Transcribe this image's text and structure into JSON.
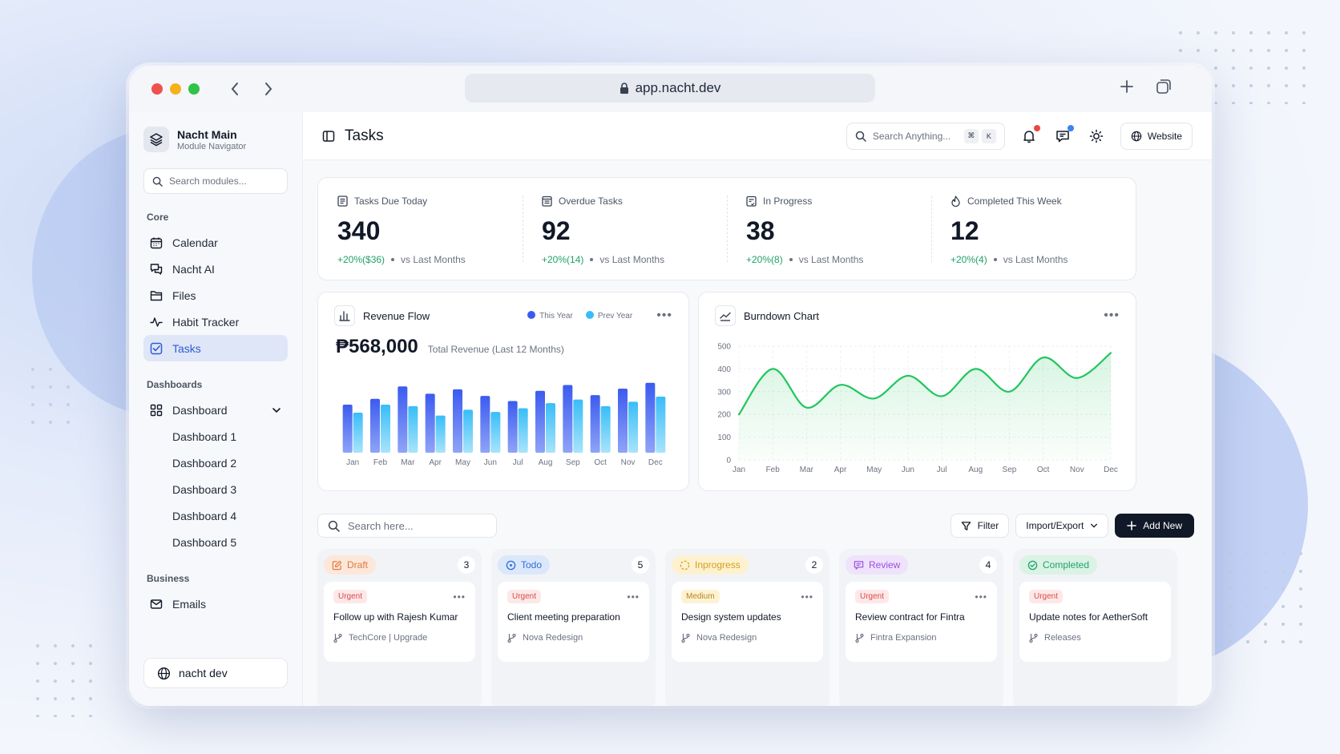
{
  "browser": {
    "url": "app.nacht.dev"
  },
  "sidebar": {
    "brand_title": "Nacht Main",
    "brand_subtitle": "Module Navigator",
    "search_placeholder": "Search modules...",
    "sections": {
      "core": "Core",
      "dashboards": "Dashboards",
      "business": "Business"
    },
    "core_items": [
      {
        "label": "Calendar",
        "icon": "calendar-icon"
      },
      {
        "label": "Nacht AI",
        "icon": "chat-icon"
      },
      {
        "label": "Files",
        "icon": "folder-icon"
      },
      {
        "label": "Habit Tracker",
        "icon": "activity-icon"
      },
      {
        "label": "Tasks",
        "icon": "checkbox-icon",
        "active": true
      }
    ],
    "dashboard_label": "Dashboard",
    "dashboard_items": [
      "Dashboard 1",
      "Dashboard 2",
      "Dashboard 3",
      "Dashboard 4",
      "Dashboard 5"
    ],
    "business_items": [
      {
        "label": "Emails",
        "icon": "mail-icon"
      }
    ],
    "profile_name": "nacht dev"
  },
  "header": {
    "title": "Tasks",
    "search_placeholder": "Search Anything...",
    "shortcut": [
      "⌘",
      "K"
    ],
    "website_label": "Website",
    "colors": {
      "notif_dot": "#ef4444",
      "message_dot": "#3b82f6"
    }
  },
  "stats": [
    {
      "label": "Tasks Due Today",
      "value": "340",
      "delta": "+20%($36)",
      "compare": "vs Last Months"
    },
    {
      "label": "Overdue Tasks",
      "value": "92",
      "delta": "+20%(14)",
      "compare": "vs Last Months"
    },
    {
      "label": "In Progress",
      "value": "38",
      "delta": "+20%(8)",
      "compare": "vs Last Months"
    },
    {
      "label": "Completed This Week",
      "value": "12",
      "delta": "+20%(4)",
      "compare": "vs Last Months"
    }
  ],
  "revenue": {
    "title": "Revenue Flow",
    "amount": "₱568,000",
    "caption": "Total Revenue (Last 12 Months)",
    "legend_this": "This Year",
    "legend_prev": "Prev Year",
    "colors": {
      "this_year": "#3b5bf0",
      "prev_year": "#38bdf8"
    }
  },
  "burndown": {
    "title": "Burndown Chart",
    "color": "#22c55e"
  },
  "chart_data": [
    {
      "type": "bar",
      "categories": [
        "Jan",
        "Feb",
        "Mar",
        "Apr",
        "May",
        "Jun",
        "Jul",
        "Aug",
        "Sep",
        "Oct",
        "Nov",
        "Dec"
      ],
      "series": [
        {
          "name": "This Year",
          "values": [
            66,
            74,
            91,
            81,
            87,
            78,
            71,
            85,
            93,
            79,
            88,
            96
          ]
        },
        {
          "name": "Prev Year",
          "values": [
            55,
            66,
            64,
            51,
            59,
            56,
            61,
            68,
            73,
            64,
            70,
            77
          ]
        }
      ],
      "ylim": [
        0,
        110
      ],
      "grid": false
    },
    {
      "type": "line",
      "x": [
        "Jan",
        "Feb",
        "Mar",
        "Apr",
        "May",
        "Jun",
        "Jul",
        "Aug",
        "Sep",
        "Oct",
        "Nov",
        "Dec"
      ],
      "y": [
        200,
        400,
        230,
        330,
        270,
        370,
        280,
        400,
        300,
        450,
        360,
        470
      ],
      "ylim": [
        0,
        500
      ],
      "yticks": [
        0,
        100,
        200,
        300,
        400,
        500
      ],
      "grid": true
    }
  ],
  "toolbar": {
    "search_placeholder": "Search here...",
    "filter_label": "Filter",
    "import_label": "Import/Export",
    "add_label": "Add New"
  },
  "kanban": [
    {
      "name": "Draft",
      "count": "3",
      "icon": "edit-icon",
      "bg": "#fde7da",
      "fg": "#e07a3f",
      "task": {
        "priority": "Urgent",
        "prio_class": "urgent",
        "title": "Follow up with Rajesh Kumar",
        "project": "TechCore | Upgrade"
      }
    },
    {
      "name": "Todo",
      "count": "5",
      "icon": "target-icon",
      "bg": "#dbe7fb",
      "fg": "#2f6fd8",
      "task": {
        "priority": "Urgent",
        "prio_class": "urgent",
        "title": "Client meeting preparation",
        "project": "Nova Redesign"
      }
    },
    {
      "name": "Inprogress",
      "count": "2",
      "icon": "loader-icon",
      "bg": "#fdf1cf",
      "fg": "#d4a11b",
      "task": {
        "priority": "Medium",
        "prio_class": "medium",
        "title": "Design system updates",
        "project": "Nova Redesign"
      }
    },
    {
      "name": "Review",
      "count": "4",
      "icon": "message-icon",
      "bg": "#efe2fb",
      "fg": "#9b51e0",
      "task": {
        "priority": "Urgent",
        "prio_class": "urgent",
        "title": "Review contract for Fintra",
        "project": "Fintra Expansion"
      }
    },
    {
      "name": "Completed",
      "count": "",
      "icon": "check-circle-icon",
      "bg": "#daf3e4",
      "fg": "#22a06b",
      "task": {
        "priority": "Urgent",
        "prio_class": "urgent",
        "title": "Update notes for AetherSoft",
        "project": "Releases"
      }
    }
  ]
}
